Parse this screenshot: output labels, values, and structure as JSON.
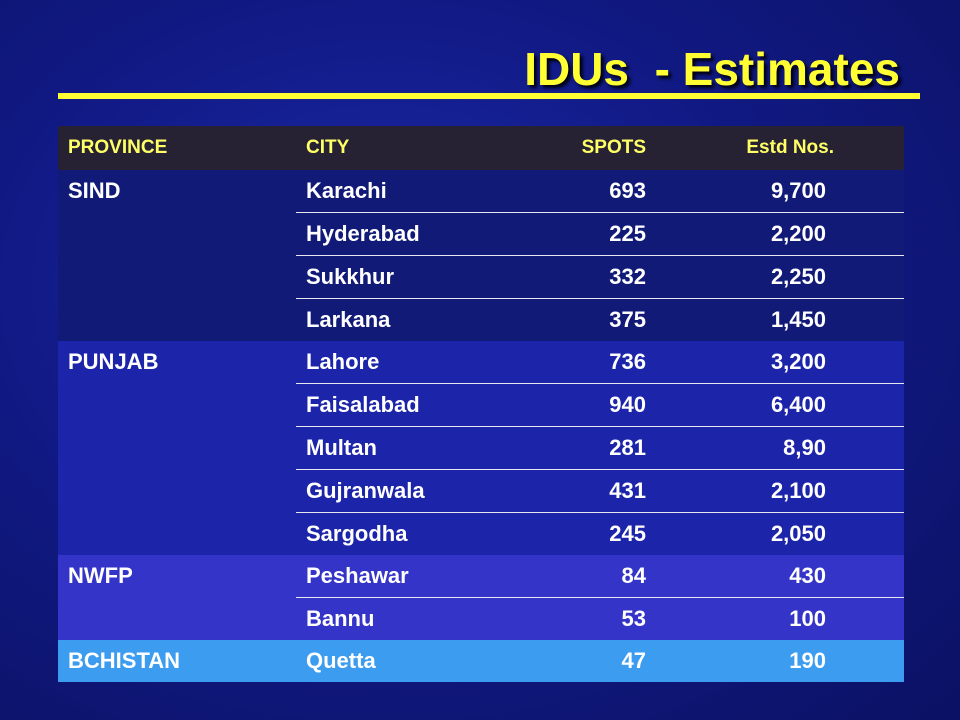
{
  "title": "IDUs  - Estimates",
  "headers": {
    "province": "PROVINCE",
    "city": "CITY",
    "spots": "SPOTS",
    "estd": "Estd Nos."
  },
  "groups": [
    {
      "province": "SIND",
      "rows": [
        {
          "city": "Karachi",
          "spots": "693",
          "estd": "9,700"
        },
        {
          "city": "Hyderabad",
          "spots": "225",
          "estd": "2,200"
        },
        {
          "city": "Sukkhur",
          "spots": "332",
          "estd": "2,250"
        },
        {
          "city": "Larkana",
          "spots": "375",
          "estd": "1,450"
        }
      ]
    },
    {
      "province": "PUNJAB",
      "rows": [
        {
          "city": "Lahore",
          "spots": "736",
          "estd": "3,200"
        },
        {
          "city": "Faisalabad",
          "spots": "940",
          "estd": "6,400"
        },
        {
          "city": "Multan",
          "spots": "281",
          "estd": "8,90"
        },
        {
          "city": "Gujranwala",
          "spots": "431",
          "estd": "2,100"
        },
        {
          "city": "Sargodha",
          "spots": "245",
          "estd": "2,050"
        }
      ]
    },
    {
      "province": "NWFP",
      "rows": [
        {
          "city": "Peshawar",
          "spots": "84",
          "estd": "430"
        },
        {
          "city": "Bannu",
          "spots": "53",
          "estd": "100"
        }
      ]
    },
    {
      "province": "BCHISTAN",
      "rows": [
        {
          "city": "Quetta",
          "spots": "47",
          "estd": "190"
        }
      ]
    }
  ],
  "colors": {
    "title": "#ffff33",
    "header_bg": "#262233",
    "header_text": "#ffff66",
    "sind_bg": "#121a78",
    "punjab_bg": "#1c24aa",
    "nwfp_bg": "#3434c8",
    "bchistan_bg": "#3c9cf0"
  }
}
